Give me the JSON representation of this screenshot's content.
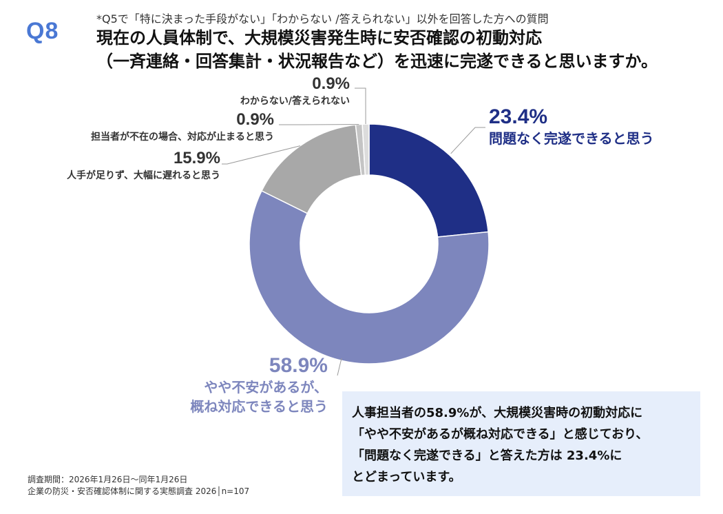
{
  "question": {
    "badge": "Q8",
    "note": "*Q5で「特に決まった手段がない」「わからない /答えられない」以外を回答した方への質問",
    "title_line1": "現在の人員体制で、大規模災害発生時に安否確認の初動対応",
    "title_line2": "（一斉連絡・回答集計・状況報告など）を迅速に完遂できると思いますか。"
  },
  "chart_data": {
    "type": "pie",
    "variant": "donut",
    "slices": [
      {
        "label": "問題なく完遂できると思う",
        "value": 23.4,
        "value_label": "23.4%",
        "color": "#1f2f86"
      },
      {
        "label_line1": "やや不安があるが、",
        "label_line2": "概ね対応できると思う",
        "value": 58.9,
        "value_label": "58.9%",
        "color": "#7d86bd"
      },
      {
        "label": "人手が足りず、大幅に遅れると思う",
        "value": 15.9,
        "value_label": "15.9%",
        "color": "#a8a8a8"
      },
      {
        "label": "担当者が不在の場合、対応が止まると思う",
        "value": 0.9,
        "value_label": "0.9%",
        "color": "#c4c4c4"
      },
      {
        "label": "わからない/答えられない",
        "value": 0.9,
        "value_label": "0.9%",
        "color": "#dcdcdc"
      }
    ]
  },
  "callout": {
    "line1": "人事担当者の58.9%が、大規模災害時の初動対応に",
    "line2": "「やや不安があるが概ね対応できる」と感じており、",
    "line3": "「問題なく完遂できる」と答えた方は 23.4%に",
    "line4": "とどまっています。"
  },
  "footer": {
    "period": "調査期間：2026年1月26日～同年1月26日",
    "survey": "企業の防災・安否確認体制に関する実態調査 2026│n=107"
  }
}
